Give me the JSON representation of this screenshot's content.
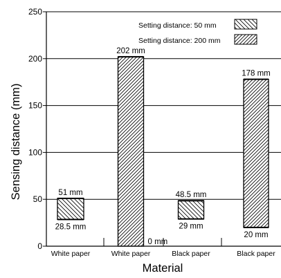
{
  "chart_data": {
    "type": "bar",
    "xlabel": "Material",
    "ylabel": "Sensing distance (mm)",
    "ylim": [
      0,
      250
    ],
    "yticks": [
      0,
      50,
      100,
      150,
      200,
      250
    ],
    "grid": true,
    "legend_position": "top-right",
    "categories": [
      "White paper",
      "White paper",
      "Black paper",
      "Black paper"
    ],
    "series": [
      {
        "name": "Setting distance: 50 mm",
        "hatch": "back-diagonal",
        "bars": [
          {
            "category_index": 0,
            "low": 28.5,
            "high": 51,
            "low_label": "28.5 mm",
            "high_label": "51 mm"
          },
          {
            "category_index": 2,
            "low": 29,
            "high": 48.5,
            "low_label": "29 mm",
            "high_label": "48.5 mm"
          }
        ]
      },
      {
        "name": "Setting distance: 200 mm",
        "hatch": "forward-diagonal",
        "bars": [
          {
            "category_index": 1,
            "low": 0,
            "high": 202,
            "low_label": "0 mm",
            "high_label": "202 mm"
          },
          {
            "category_index": 3,
            "low": 20,
            "high": 178,
            "low_label": "20 mm",
            "high_label": "178 mm"
          }
        ]
      }
    ]
  }
}
